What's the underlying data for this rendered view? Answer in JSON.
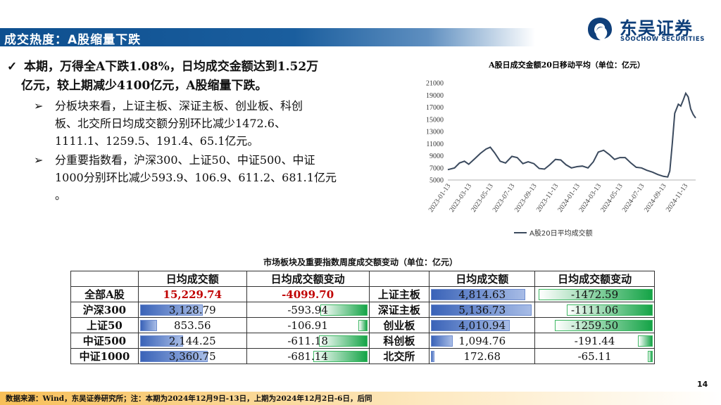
{
  "header": {
    "title": "成交热度：A股缩量下跌"
  },
  "logo": {
    "name_cn": "东吴证券",
    "name_en": "SOOCHOW SECURITIES"
  },
  "bullets": {
    "main_1": "本期，万得全A下跌1.08%，日均成交金额达到1.52万",
    "main_2": "亿元，较上期减少4100亿元，A股缩量下跌。",
    "sub1_1": "分板块来看，上证主板、深证主板、创业板、科创",
    "sub1_2": "板、北交所日均成交额分别环比减少1472.6、",
    "sub1_3": "1111.1、1259.5、191.4、65.1亿元。",
    "sub2_1": "分重要指数看，沪深300、上证50、中证500、中证",
    "sub2_2": "1000分别环比减少593.9、106.9、611.2、681.1亿元",
    "sub2_3": "。"
  },
  "chart_data": {
    "type": "line",
    "title": "A股日成交金额20日移动平均（单位：亿元）",
    "ylim": [
      5000,
      21000
    ],
    "y_ticks": [
      "5000",
      "7000",
      "9000",
      "11000",
      "13000",
      "15000",
      "17000",
      "19000",
      "21000"
    ],
    "x_ticks": [
      "2023-01-13",
      "2023-03-13",
      "2023-05-13",
      "2023-07-13",
      "2023-09-13",
      "2023-11-13",
      "2024-01-13",
      "2024-03-13",
      "2024-05-13",
      "2024-07-13",
      "2024-09-13",
      "2024-11-13"
    ],
    "legend_position": "bottom",
    "series": [
      {
        "name": "A股20日平均成交额",
        "x": [
          "2023-01-13",
          "2023-02-01",
          "2023-02-15",
          "2023-03-01",
          "2023-03-13",
          "2023-04-01",
          "2023-04-15",
          "2023-05-01",
          "2023-05-13",
          "2023-05-25",
          "2023-06-10",
          "2023-06-25",
          "2023-07-13",
          "2023-07-28",
          "2023-08-13",
          "2023-08-28",
          "2023-09-13",
          "2023-09-28",
          "2023-10-13",
          "2023-10-28",
          "2023-11-13",
          "2023-11-28",
          "2023-12-13",
          "2023-12-28",
          "2024-01-13",
          "2024-01-28",
          "2024-02-13",
          "2024-02-28",
          "2024-03-13",
          "2024-03-28",
          "2024-04-13",
          "2024-04-28",
          "2024-05-13",
          "2024-05-28",
          "2024-06-13",
          "2024-06-28",
          "2024-07-13",
          "2024-07-28",
          "2024-08-13",
          "2024-08-28",
          "2024-09-13",
          "2024-09-25",
          "2024-10-01",
          "2024-10-08",
          "2024-10-15",
          "2024-10-25",
          "2024-11-01",
          "2024-11-08",
          "2024-11-15",
          "2024-11-22",
          "2024-11-29",
          "2024-12-06",
          "2024-12-13"
        ],
        "values": [
          6700,
          7000,
          7800,
          8100,
          7600,
          8600,
          9400,
          10100,
          10400,
          9500,
          8100,
          7800,
          8900,
          8700,
          7700,
          8000,
          7700,
          6900,
          6800,
          7500,
          8400,
          8300,
          7500,
          7000,
          7200,
          7300,
          7000,
          8000,
          9600,
          9900,
          9200,
          8400,
          8700,
          8700,
          7800,
          7100,
          7000,
          6600,
          6300,
          5900,
          5600,
          5500,
          6500,
          11000,
          16000,
          17500,
          17200,
          18200,
          19300,
          18700,
          16700,
          15800,
          15230
        ]
      }
    ]
  },
  "table": {
    "title": "市场板块及重要指数周度成交额变动（单位：亿元）",
    "headers": {
      "h1": "日均成交额",
      "h2": "日均成交额变动",
      "h3": "日均成交额",
      "h4": "日均成交额变动"
    },
    "left_rows": [
      {
        "name": "全部A股",
        "amount": "15,229.74",
        "change": "-4099.70"
      },
      {
        "name": "沪深300",
        "amount": "3,128.79",
        "change": "-593.94"
      },
      {
        "name": "上证50",
        "amount": "853.56",
        "change": "-106.91"
      },
      {
        "name": "中证500",
        "amount": "2,144.25",
        "change": "-611.18"
      },
      {
        "name": "中证1000",
        "amount": "3,360.75",
        "change": "-681.14"
      }
    ],
    "right_rows": [
      {
        "name": "上证主板",
        "amount": "4,814.63",
        "change": "-1472.59"
      },
      {
        "name": "深证主板",
        "amount": "5,136.73",
        "change": "-1111.06"
      },
      {
        "name": "创业板",
        "amount": "4,010.94",
        "change": "-1259.50"
      },
      {
        "name": "科创板",
        "amount": "1,094.76",
        "change": "-191.44"
      },
      {
        "name": "北交所",
        "amount": "172.68",
        "change": "-65.11"
      }
    ],
    "colors": {
      "highlight": "#c00000",
      "bar_blue": "#3a63b8",
      "bar_green": "#15a447"
    }
  },
  "footer": {
    "source": "数据来源：Wind，东吴证券研究所；注：本期为2024年12月9日-13日，上期为2024年12月2日-6日，后同"
  },
  "page_number": "14"
}
